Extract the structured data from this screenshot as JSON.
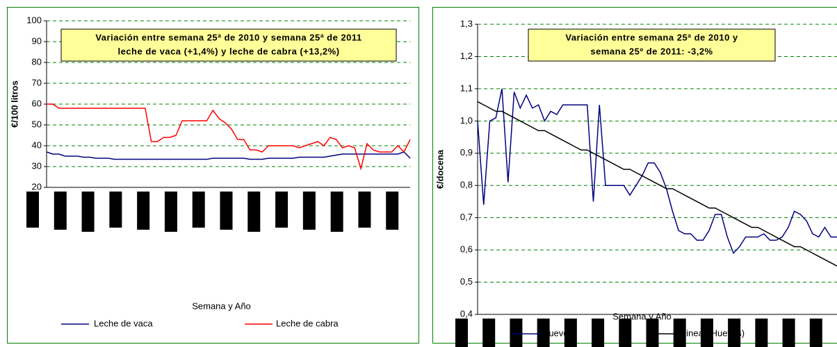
{
  "chart_data": [
    {
      "type": "line",
      "y_label": "€/100 litros",
      "x_label": "Semana y Año",
      "annotation": [
        "Variación entre semana 25ª de 2010 y semana 25ª de 2011",
        "leche de vaca (+1,4%) y leche de cabra (+13,2%)"
      ],
      "categories": [
        null,
        null,
        null,
        null,
        null,
        null,
        null,
        null,
        null,
        null,
        null,
        null,
        null,
        null,
        null,
        null,
        null,
        null,
        null,
        null,
        null,
        null,
        null,
        null,
        null,
        null,
        null,
        null,
        null,
        null,
        null,
        null,
        null,
        null,
        null,
        null,
        null,
        null,
        null,
        null,
        null,
        null,
        null,
        null,
        null,
        null,
        null,
        null,
        null,
        null,
        null,
        null,
        null,
        null,
        null,
        null,
        null,
        null,
        null,
        null
      ],
      "series": [
        {
          "name": "Leche de vaca",
          "color": "#000080",
          "values": [
            37,
            36,
            36,
            35,
            35,
            35,
            34.5,
            34.5,
            34,
            34,
            34,
            33.5,
            33.5,
            33.5,
            33.5,
            33.5,
            33.5,
            33.5,
            33.5,
            33.5,
            33.5,
            33.5,
            33.5,
            33.5,
            33.5,
            33.5,
            33.5,
            34,
            34,
            34,
            34,
            34,
            34,
            33.5,
            33.5,
            33.5,
            34,
            34,
            34,
            34,
            34,
            34.5,
            34.5,
            34.5,
            34.5,
            34.5,
            35,
            35.5,
            36,
            36,
            36,
            36,
            36,
            36,
            36,
            36,
            36,
            36,
            37,
            34
          ]
        },
        {
          "name": "Leche de cabra",
          "color": "#ff0000",
          "values": [
            60,
            60,
            58,
            58,
            58,
            58,
            58,
            58,
            58,
            58,
            58,
            58,
            58,
            58,
            58,
            58,
            58,
            42,
            42,
            44,
            44,
            45,
            52,
            52,
            52,
            52,
            52,
            57,
            53,
            51,
            48,
            43,
            43,
            38,
            38,
            37,
            40,
            40,
            40,
            40,
            40,
            39,
            40,
            41,
            42,
            40,
            44,
            43,
            39,
            40,
            39,
            29,
            41,
            38,
            37,
            37,
            37,
            40,
            37,
            43
          ]
        }
      ],
      "ylim": [
        20,
        100
      ],
      "yticks": [
        20,
        30,
        40,
        50,
        60,
        70,
        80,
        90,
        100
      ],
      "grid": true,
      "legend": "bottom"
    },
    {
      "type": "line",
      "y_label": "€/docena",
      "x_label": "Semana y Año",
      "annotation": [
        "Variación entre semana 25ª de 2010 y",
        "semana 25º de 2011: -3,2%"
      ],
      "categories": [
        null,
        null,
        null,
        null,
        null,
        null,
        null,
        null,
        null,
        null,
        null,
        null,
        null,
        null,
        null,
        null,
        null,
        null,
        null,
        null,
        null,
        null,
        null,
        null,
        null,
        null,
        null,
        null,
        null,
        null,
        null,
        null,
        null,
        null,
        null,
        null,
        null,
        null,
        null,
        null,
        null,
        null,
        null,
        null,
        null,
        null,
        null,
        null,
        null,
        null,
        null,
        null,
        null,
        null,
        null,
        null,
        null,
        null,
        null,
        null
      ],
      "series": [
        {
          "name": "Huevos",
          "color": "#000080",
          "values": [
            1.0,
            0.74,
            1.0,
            1.01,
            1.1,
            0.81,
            1.09,
            1.04,
            1.08,
            1.04,
            1.05,
            1.0,
            1.03,
            1.02,
            1.05,
            1.05,
            1.05,
            1.05,
            1.05,
            0.75,
            1.05,
            0.8,
            0.8,
            0.8,
            0.8,
            0.77,
            0.8,
            0.83,
            0.87,
            0.87,
            0.84,
            0.79,
            0.72,
            0.66,
            0.65,
            0.65,
            0.63,
            0.63,
            0.66,
            0.71,
            0.71,
            0.64,
            0.59,
            0.61,
            0.64,
            0.64,
            0.64,
            0.65,
            0.63,
            0.63,
            0.64,
            0.67,
            0.72,
            0.71,
            0.69,
            0.65,
            0.64,
            0.67,
            0.64,
            0.64
          ]
        },
        {
          "name": "Lineal (Huevos)",
          "color": "#000000",
          "values": [
            1.06,
            1.05,
            1.04,
            1.03,
            1.03,
            1.02,
            1.01,
            1.0,
            0.99,
            0.98,
            0.97,
            0.97,
            0.96,
            0.95,
            0.94,
            0.93,
            0.92,
            0.91,
            0.91,
            0.9,
            0.89,
            0.88,
            0.87,
            0.86,
            0.85,
            0.85,
            0.84,
            0.83,
            0.82,
            0.81,
            0.8,
            0.79,
            0.79,
            0.78,
            0.77,
            0.76,
            0.75,
            0.74,
            0.73,
            0.73,
            0.72,
            0.71,
            0.7,
            0.69,
            0.68,
            0.67,
            0.67,
            0.66,
            0.65,
            0.64,
            0.63,
            0.62,
            0.61,
            0.61,
            0.6,
            0.59,
            0.58,
            0.57,
            0.56,
            0.55
          ]
        }
      ],
      "ylim": [
        0.4,
        1.3
      ],
      "yticks": [
        {
          "value": 0.4,
          "label": "0,4"
        },
        {
          "value": 0.5,
          "label": "0,5"
        },
        {
          "value": 0.6,
          "label": "0,6"
        },
        {
          "value": 0.7,
          "label": "0,7"
        },
        {
          "value": 0.8,
          "label": "0,8"
        },
        {
          "value": 0.9,
          "label": "0,9"
        },
        {
          "value": 1.0,
          "label": "1,0"
        },
        {
          "value": 1.1,
          "label": "1,1"
        },
        {
          "value": 1.2,
          "label": "1,2"
        },
        {
          "value": 1.3,
          "label": "1,3"
        }
      ],
      "grid": true,
      "legend": "bottom"
    }
  ]
}
